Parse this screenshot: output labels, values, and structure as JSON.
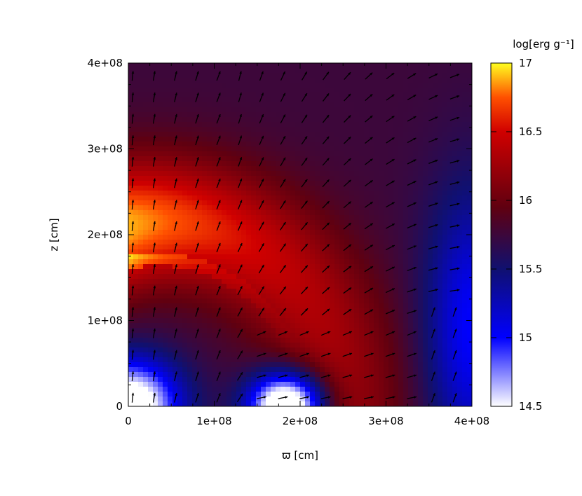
{
  "chart_data": {
    "type": "heatmap",
    "title": "",
    "xlabel": "ϖ [cm]",
    "ylabel": "z [cm]",
    "xlim": [
      0,
      400000000
    ],
    "ylim": [
      0,
      400000000
    ],
    "x_ticks": [
      "0",
      "1e+08",
      "2e+08",
      "3e+08",
      "4e+08"
    ],
    "y_ticks": [
      "0",
      "1e+08",
      "2e+08",
      "3e+08",
      "4e+08"
    ],
    "colorbar": {
      "label": "log[erg g⁻¹]",
      "range": [
        14.5,
        17
      ],
      "ticks": [
        "14.5",
        "15",
        "15.5",
        "16",
        "16.5",
        "17"
      ],
      "colormap": [
        "#ffffff",
        "#0000ff",
        "#101070",
        "#600010",
        "#d00000",
        "#ff5000",
        "#ffff20"
      ]
    },
    "field": {
      "quantity": "log specific internal energy",
      "background_level": 15.75,
      "shell_peak_level": 17.0,
      "shell_peak_at": [
        0,
        180000000
      ],
      "low_regions": [
        {
          "center": [
            0,
            0
          ],
          "level": 14.5
        },
        {
          "center": [
            185000000,
            0
          ],
          "level": 14.5
        },
        {
          "center": [
            400000000,
            100000000
          ],
          "level": 15.1
        }
      ]
    },
    "vector_field": {
      "description": "velocity arrows, upward near axis, outward/horizontal near equator",
      "grid_spacing": 25000000
    }
  }
}
